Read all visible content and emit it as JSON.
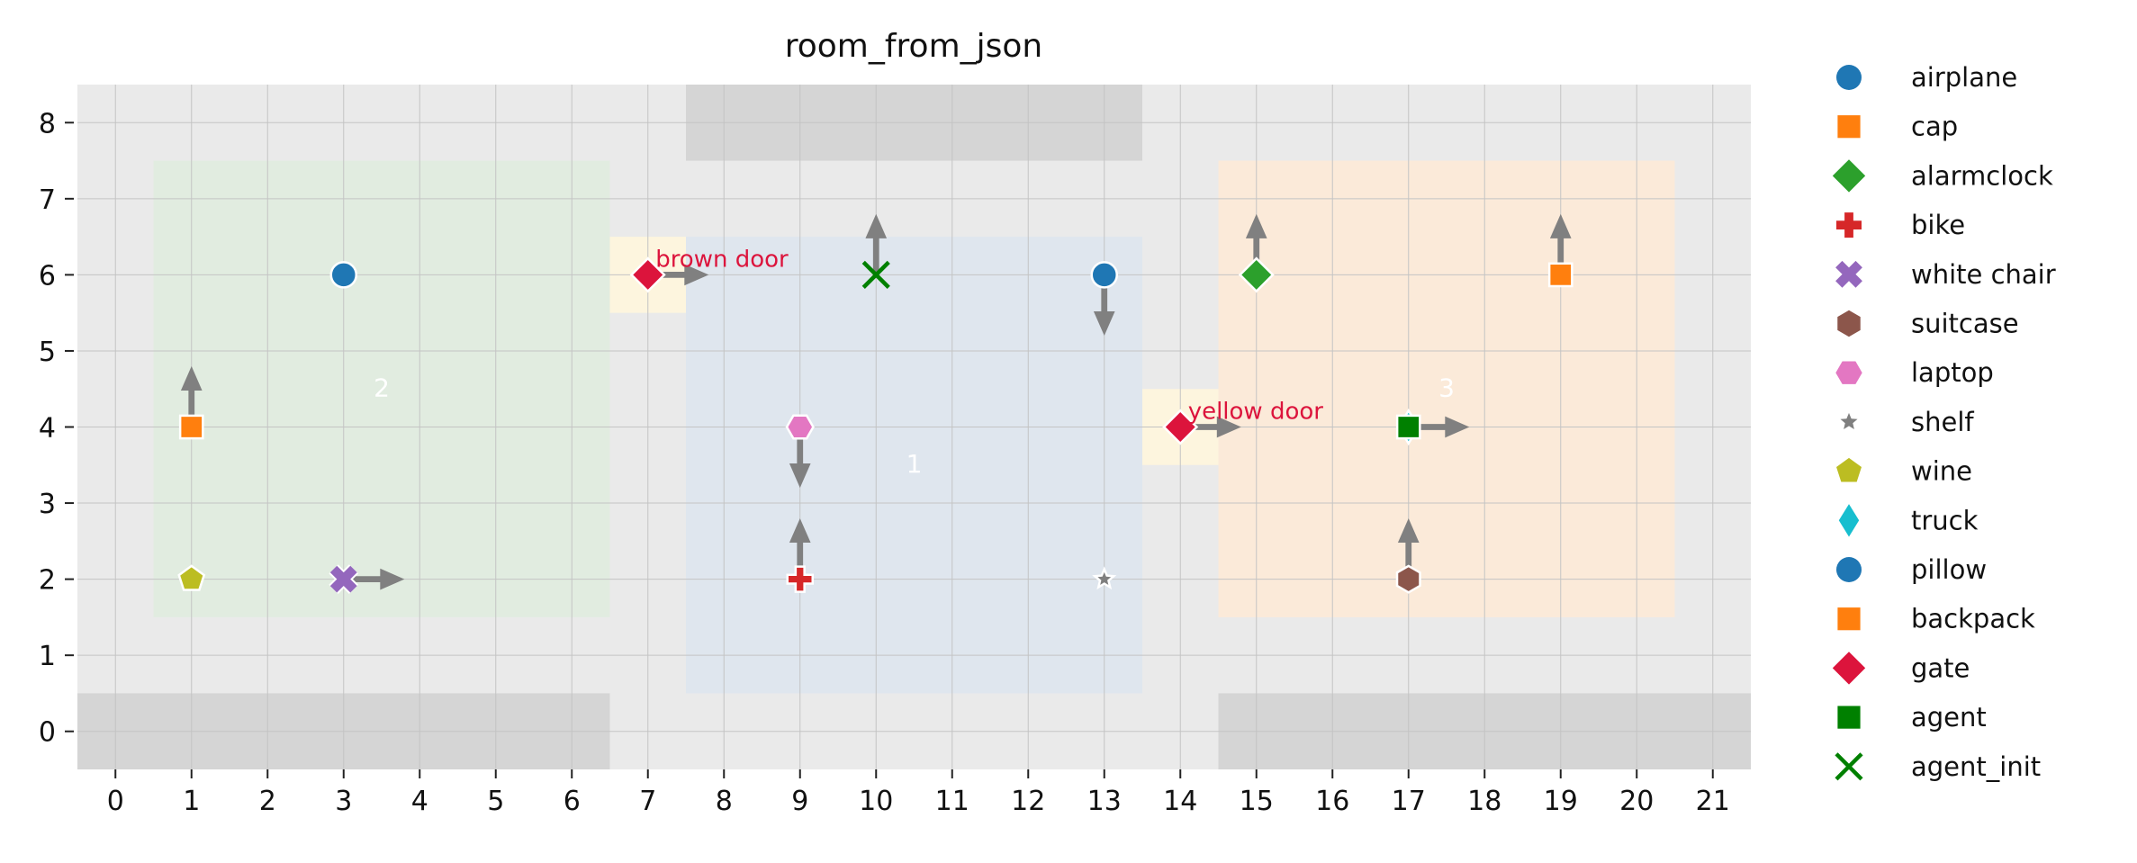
{
  "chart_data": {
    "type": "scatter",
    "title": "room_from_json",
    "xlabel": "",
    "ylabel": "",
    "xlim": [
      -0.5,
      21.5
    ],
    "ylim": [
      -0.5,
      8.5
    ],
    "x_ticks": [
      0,
      1,
      2,
      3,
      4,
      5,
      6,
      7,
      8,
      9,
      10,
      11,
      12,
      13,
      14,
      15,
      16,
      17,
      18,
      19,
      20,
      21
    ],
    "y_ticks": [
      0,
      1,
      2,
      3,
      4,
      5,
      6,
      7,
      8
    ],
    "grid": true,
    "legend_position": "right-outside",
    "background_color": "#eaeaea",
    "rooms": [
      {
        "label": "2",
        "x": [
          0.5,
          6.5
        ],
        "y": [
          1.5,
          7.5
        ],
        "color": "#e1ece0",
        "label_at": [
          3.5,
          4.4
        ]
      },
      {
        "label": "1",
        "x": [
          7.5,
          13.5
        ],
        "y": [
          0.5,
          6.5
        ],
        "color": "#dfe6ee",
        "label_at": [
          10.5,
          3.4
        ]
      },
      {
        "label": "3",
        "x": [
          14.5,
          20.5
        ],
        "y": [
          1.5,
          7.5
        ],
        "color": "#fbead9",
        "label_at": [
          17.5,
          4.4
        ]
      }
    ],
    "doors": [
      {
        "x": [
          6.5,
          7.5
        ],
        "y": [
          5.5,
          6.5
        ],
        "color": "#fdf5de"
      },
      {
        "x": [
          13.5,
          14.5
        ],
        "y": [
          3.5,
          4.5
        ],
        "color": "#fdf5de"
      }
    ],
    "walls": [
      {
        "x": [
          -0.5,
          6.5
        ],
        "y": [
          -0.5,
          0.5
        ],
        "color": "#d5d5d5"
      },
      {
        "x": [
          7.5,
          13.5
        ],
        "y": [
          7.5,
          8.5
        ],
        "color": "#d5d5d5"
      },
      {
        "x": [
          14.5,
          21.5
        ],
        "y": [
          -0.5,
          0.5
        ],
        "color": "#d5d5d5"
      }
    ],
    "annotations": [
      {
        "text": "brown door",
        "at": [
          7.1,
          6.2
        ],
        "color": "#dc143c"
      },
      {
        "text": "yellow door",
        "at": [
          14.1,
          4.2
        ],
        "color": "#dc143c"
      }
    ],
    "arrow_color": "#808080",
    "series": [
      {
        "name": "airplane",
        "marker": "circle",
        "color": "#1f77b4",
        "points": [
          {
            "x": 3,
            "y": 6
          }
        ]
      },
      {
        "name": "cap",
        "marker": "square",
        "color": "#ff7f0e",
        "points": [
          {
            "x": 1,
            "y": 4,
            "dir": "up"
          }
        ]
      },
      {
        "name": "alarmclock",
        "marker": "diamond",
        "color": "#2ca02c",
        "points": [
          {
            "x": 15,
            "y": 6,
            "dir": "up"
          }
        ]
      },
      {
        "name": "bike",
        "marker": "plus",
        "color": "#d62728",
        "points": [
          {
            "x": 9,
            "y": 2,
            "dir": "up"
          }
        ]
      },
      {
        "name": "white chair",
        "marker": "x",
        "color": "#9467bd",
        "points": [
          {
            "x": 3,
            "y": 2,
            "dir": "right"
          }
        ]
      },
      {
        "name": "suitcase",
        "marker": "hexagon",
        "color": "#8c564b",
        "points": [
          {
            "x": 17,
            "y": 2,
            "dir": "up"
          }
        ]
      },
      {
        "name": "laptop",
        "marker": "hexagon2",
        "color": "#e377c2",
        "points": [
          {
            "x": 9,
            "y": 4,
            "dir": "down"
          }
        ]
      },
      {
        "name": "shelf",
        "marker": "star",
        "color": "#7f7f7f",
        "points": [
          {
            "x": 13,
            "y": 2
          }
        ]
      },
      {
        "name": "wine",
        "marker": "pentagon",
        "color": "#bcbd22",
        "points": [
          {
            "x": 1,
            "y": 2
          }
        ]
      },
      {
        "name": "truck",
        "marker": "thin_diamond",
        "color": "#17becf",
        "points": [
          {
            "x": 17,
            "y": 4
          }
        ]
      },
      {
        "name": "pillow",
        "marker": "circle",
        "color": "#1f77b4",
        "points": [
          {
            "x": 13,
            "y": 6,
            "dir": "down"
          }
        ]
      },
      {
        "name": "backpack",
        "marker": "square",
        "color": "#ff7f0e",
        "points": [
          {
            "x": 19,
            "y": 6,
            "dir": "up"
          }
        ]
      },
      {
        "name": "gate",
        "marker": "diamond",
        "color": "#dc143c",
        "points": [
          {
            "x": 7,
            "y": 6,
            "dir": "right"
          },
          {
            "x": 14,
            "y": 4,
            "dir": "right"
          }
        ]
      },
      {
        "name": "agent",
        "marker": "square",
        "color": "#008000",
        "points": [
          {
            "x": 17,
            "y": 4,
            "dir": "right"
          }
        ]
      },
      {
        "name": "agent_init",
        "marker": "xthin",
        "color": "#008000",
        "points": [
          {
            "x": 10,
            "y": 6,
            "dir": "up"
          }
        ]
      }
    ]
  }
}
